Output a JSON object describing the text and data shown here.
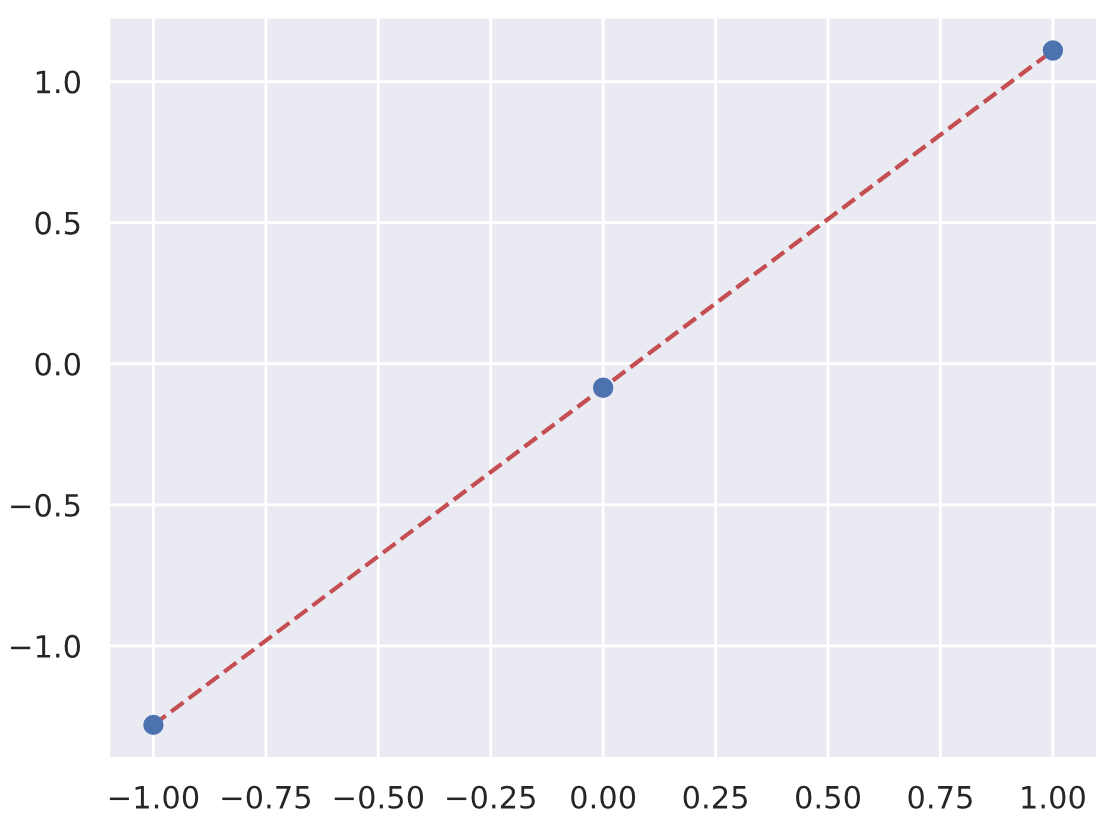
{
  "chart_data": {
    "type": "scatter",
    "x": [
      -1,
      0,
      1
    ],
    "series": [
      {
        "color": "#4c72b0",
        "marker": "circle",
        "values": [
          -1.28,
          -0.085,
          1.11
        ]
      },
      {
        "type": "line",
        "color": "#c44e52",
        "line_style": "dashed",
        "marker": "none",
        "values": [
          -1.28,
          -0.085,
          1.11
        ]
      }
    ],
    "xlim": [
      -1.1,
      1.1
    ],
    "ylim": [
      -1.4,
      1.23
    ],
    "xticks": [
      {
        "value": -1,
        "label": "−1.00"
      },
      {
        "value": -0.75,
        "label": "−0.75"
      },
      {
        "value": -0.5,
        "label": "−0.50"
      },
      {
        "value": -0.25,
        "label": "−0.25"
      },
      {
        "value": 0,
        "label": "0.00"
      },
      {
        "value": 0.25,
        "label": "0.25"
      },
      {
        "value": 0.5,
        "label": "0.50"
      },
      {
        "value": 0.75,
        "label": "0.75"
      },
      {
        "value": 1,
        "label": "1.00"
      }
    ],
    "yticks": [
      {
        "value": -1,
        "label": "−1.0"
      },
      {
        "value": -0.5,
        "label": "−0.5"
      },
      {
        "value": 0,
        "label": "0.0"
      },
      {
        "value": 0.5,
        "label": "0.5"
      },
      {
        "value": 1,
        "label": "1.0"
      }
    ],
    "grid": true
  }
}
